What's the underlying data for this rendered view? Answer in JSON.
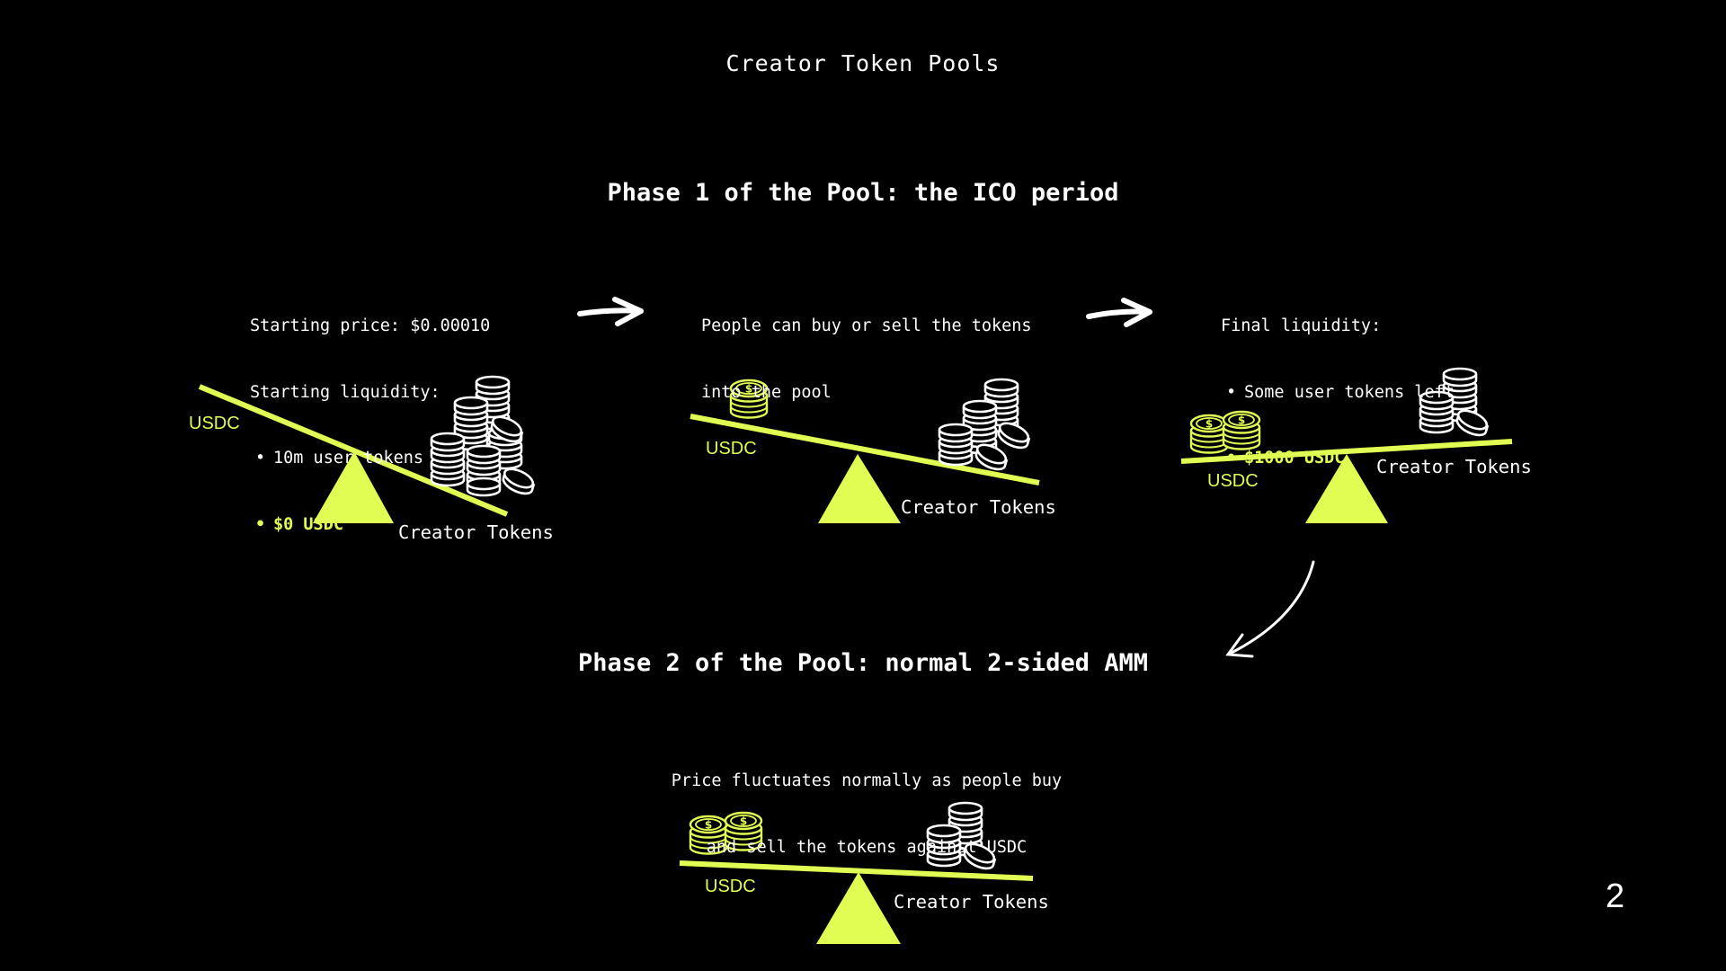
{
  "title": "Creator Token Pools",
  "phase1": {
    "heading": "Phase 1 of the Pool: the ICO period",
    "stage1": {
      "line1": "Starting price: $0.00010",
      "line2": "Starting liquidity:",
      "bullet1": "10m user tokens",
      "bullet2": "$0 USDC",
      "usdc_label": "USDC",
      "tokens_label": "Creator Tokens"
    },
    "stage2": {
      "line1": "People can buy or sell the tokens",
      "line2": "into the pool",
      "usdc_label": "USDC",
      "tokens_label": "Creator Tokens"
    },
    "stage3": {
      "line1": "Final liquidity:",
      "bullet1": "Some user tokens left",
      "bullet2": "$1000 USDC",
      "usdc_label": "USDC",
      "tokens_label": "Creator Tokens"
    }
  },
  "phase2": {
    "heading": "Phase 2 of the Pool: normal 2-sided AMM",
    "line1": "Price fluctuates normally as people buy",
    "line2": "and sell the tokens against USDC",
    "usdc_label": "USDC",
    "tokens_label": "Creator Tokens"
  },
  "page_number": "2",
  "colors": {
    "accent": "#e1fc52",
    "background": "#000000",
    "foreground": "#ffffff"
  }
}
